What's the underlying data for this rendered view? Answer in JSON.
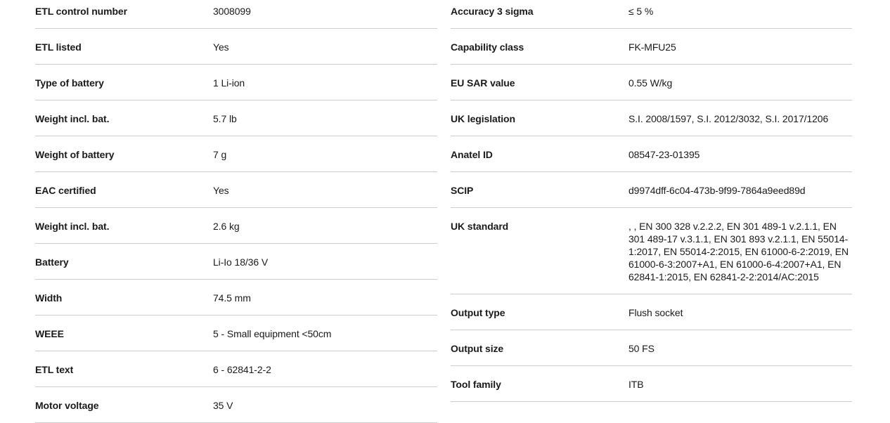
{
  "colors": {
    "text": "#1a1a1a",
    "divider": "#cccccc",
    "background": "#ffffff"
  },
  "table_left": {
    "rows": [
      {
        "label": "ETL control number",
        "value": "3008099"
      },
      {
        "label": "ETL listed",
        "value": "Yes"
      },
      {
        "label": "Type of battery",
        "value": "1 Li-ion"
      },
      {
        "label": "Weight incl. bat.",
        "value": "5.7 lb"
      },
      {
        "label": "Weight of battery",
        "value": "7 g"
      },
      {
        "label": "EAC certified",
        "value": "Yes"
      },
      {
        "label": "Weight incl. bat.",
        "value": "2.6 kg"
      },
      {
        "label": "Battery",
        "value": "Li-Io 18/36 V"
      },
      {
        "label": "Width",
        "value": "74.5 mm"
      },
      {
        "label": "WEEE",
        "value": "5 - Small equipment <50cm"
      },
      {
        "label": "ETL text",
        "value": "6 - 62841-2-2"
      },
      {
        "label": "Motor voltage",
        "value": "35 V"
      }
    ]
  },
  "table_right": {
    "rows": [
      {
        "label": "Accuracy 3 sigma",
        "value": "≤ 5 %"
      },
      {
        "label": "Capability class",
        "value": "FK-MFU25"
      },
      {
        "label": "EU SAR value",
        "value": "0.55 W/kg"
      },
      {
        "label": "UK legislation",
        "value": "S.I. 2008/1597, S.I. 2012/3032, S.I. 2017/1206"
      },
      {
        "label": "Anatel ID",
        "value": "08547-23-01395"
      },
      {
        "label": "SCIP",
        "value": "d9974dff-6c04-473b-9f99-7864a9eed89d"
      },
      {
        "label": "UK standard",
        "value": ", , EN 300 328 v.2.2.2, EN 301 489-1 v.2.1.1, EN 301 489-17 v.3.1.1, EN 301 893 v.2.1.1, EN 55014-1:2017, EN 55014-2:2015, EN 61000-6-2:2019, EN 61000-6-3:2007+A1, EN 61000-6-4:2007+A1, EN 62841-1:2015, EN 62841-2-2:2014/AC:2015"
      },
      {
        "label": "Output type",
        "value": "Flush socket"
      },
      {
        "label": "Output size",
        "value": "50 FS"
      },
      {
        "label": "Tool family",
        "value": "ITB"
      }
    ]
  }
}
